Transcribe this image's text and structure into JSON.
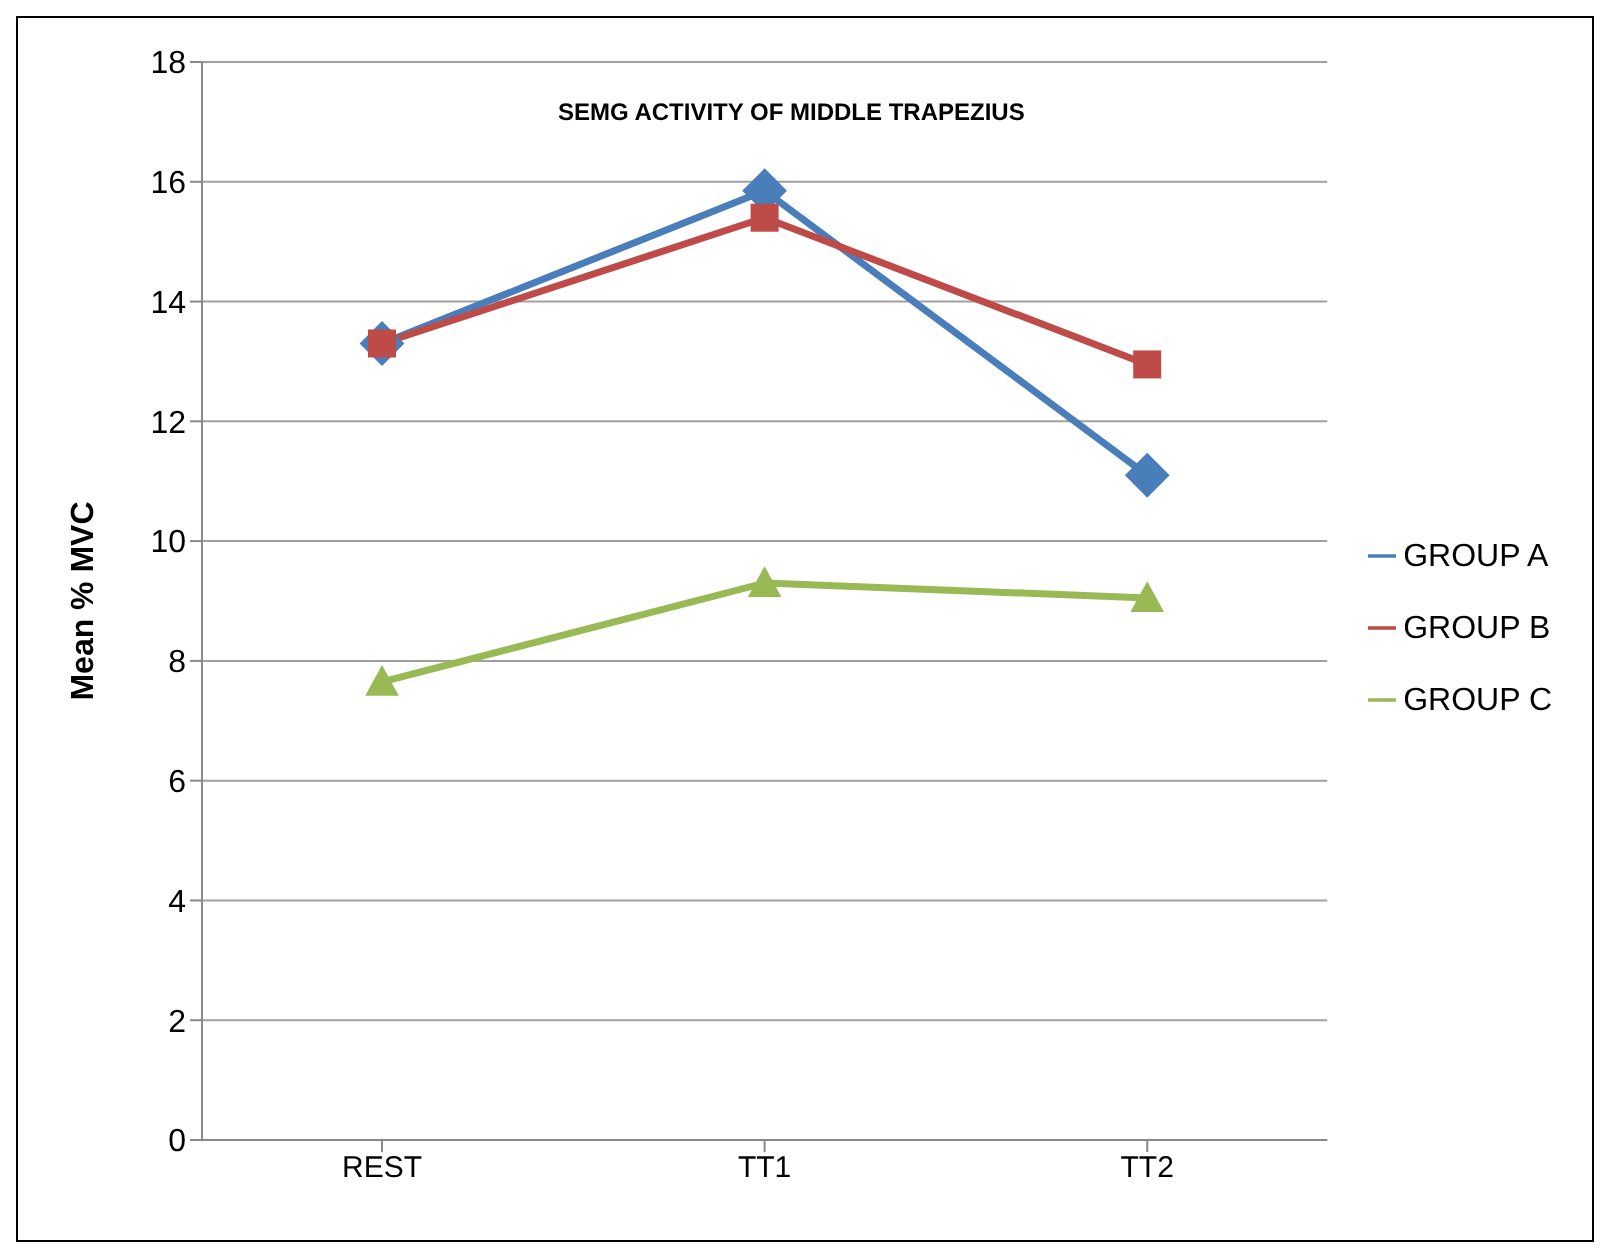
{
  "chart_data": {
    "type": "line",
    "title": "SEMG ACTIVITY OF MIDDLE TRAPEZIUS",
    "ylabel": "Mean % MVC",
    "categories": [
      "REST",
      "TT1",
      "TT2"
    ],
    "series": [
      {
        "name": "GROUP A",
        "color": "#4a7ebb",
        "marker": "diamond",
        "values": [
          13.3,
          15.85,
          11.1
        ]
      },
      {
        "name": "GROUP B",
        "color": "#be4b48",
        "marker": "square",
        "values": [
          13.3,
          15.4,
          12.95
        ]
      },
      {
        "name": "GROUP C",
        "color": "#98b954",
        "marker": "triangle",
        "values": [
          7.65,
          9.3,
          9.05
        ]
      }
    ],
    "ylim": [
      0,
      18
    ],
    "yticks": [
      0,
      2,
      4,
      6,
      8,
      10,
      12,
      14,
      16,
      18
    ],
    "grid": "y",
    "legend": "right"
  }
}
